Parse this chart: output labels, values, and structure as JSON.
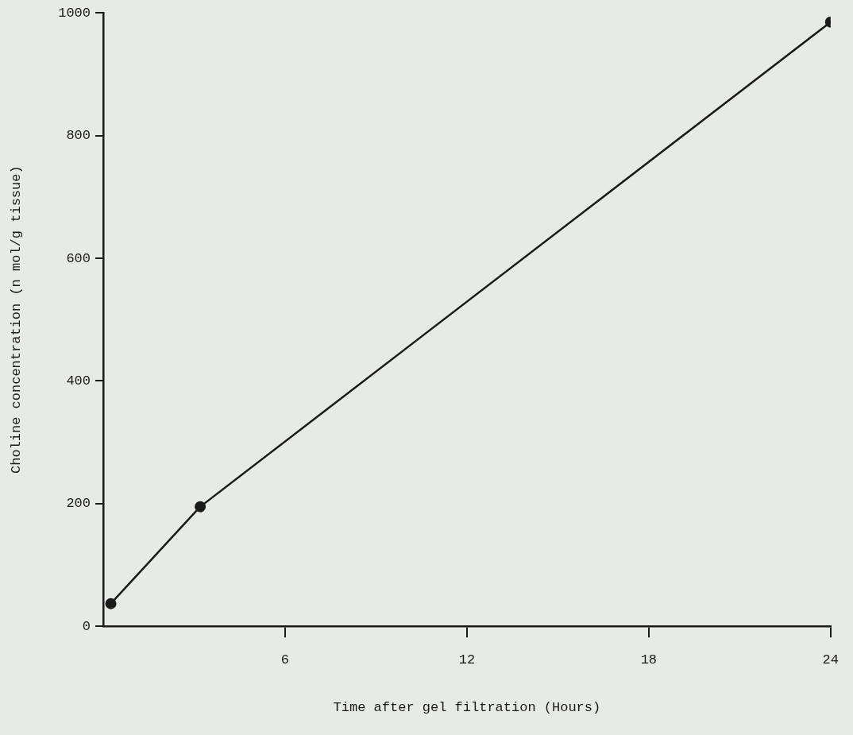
{
  "chart_data": {
    "type": "line",
    "xlabel": "Time after gel filtration (Hours)",
    "ylabel": "Choline concentration (n mol/g tissue)",
    "x": [
      0.25,
      3.2,
      24
    ],
    "series": [
      {
        "color": "#1a1a1a",
        "values": [
          37,
          195,
          985
        ]
      }
    ],
    "xlim": [
      0,
      24
    ],
    "xticks": [
      6,
      12,
      18,
      24
    ],
    "ylim": [
      0,
      1000
    ],
    "yticks": [
      0,
      200,
      400,
      600,
      800,
      1000
    ],
    "grid": false,
    "legend": false,
    "marker": "circle",
    "line_style": "solid"
  }
}
